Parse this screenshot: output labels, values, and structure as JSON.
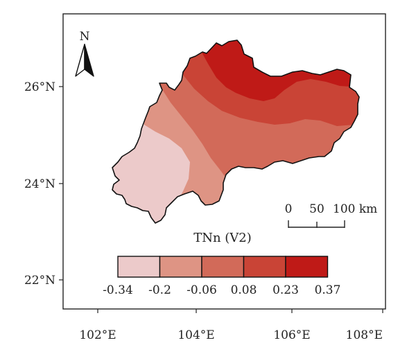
{
  "map": {
    "north_label": "N",
    "latitude_labels": [
      "26°N",
      "24°N",
      "22°N"
    ],
    "longitude_labels": [
      "102°E",
      "104°E",
      "106°E",
      "108°E"
    ],
    "scale_bar": {
      "labels": [
        "0",
        "50",
        "100 km"
      ]
    },
    "legend": {
      "title": "TNn (V2)",
      "breaks": [
        "-0.34",
        "-0.2",
        "-0.06",
        "0.08",
        "0.23",
        "0.37"
      ],
      "colors": [
        "#eccaca",
        "#de9484",
        "#d26a59",
        "#c94436",
        "#bf1a17"
      ]
    },
    "zone_colors": {
      "zone_1": "#eccaca",
      "zone_2": "#de9484",
      "zone_3": "#d26a59",
      "zone_4": "#c94436",
      "zone_5": "#bf1a17"
    }
  }
}
